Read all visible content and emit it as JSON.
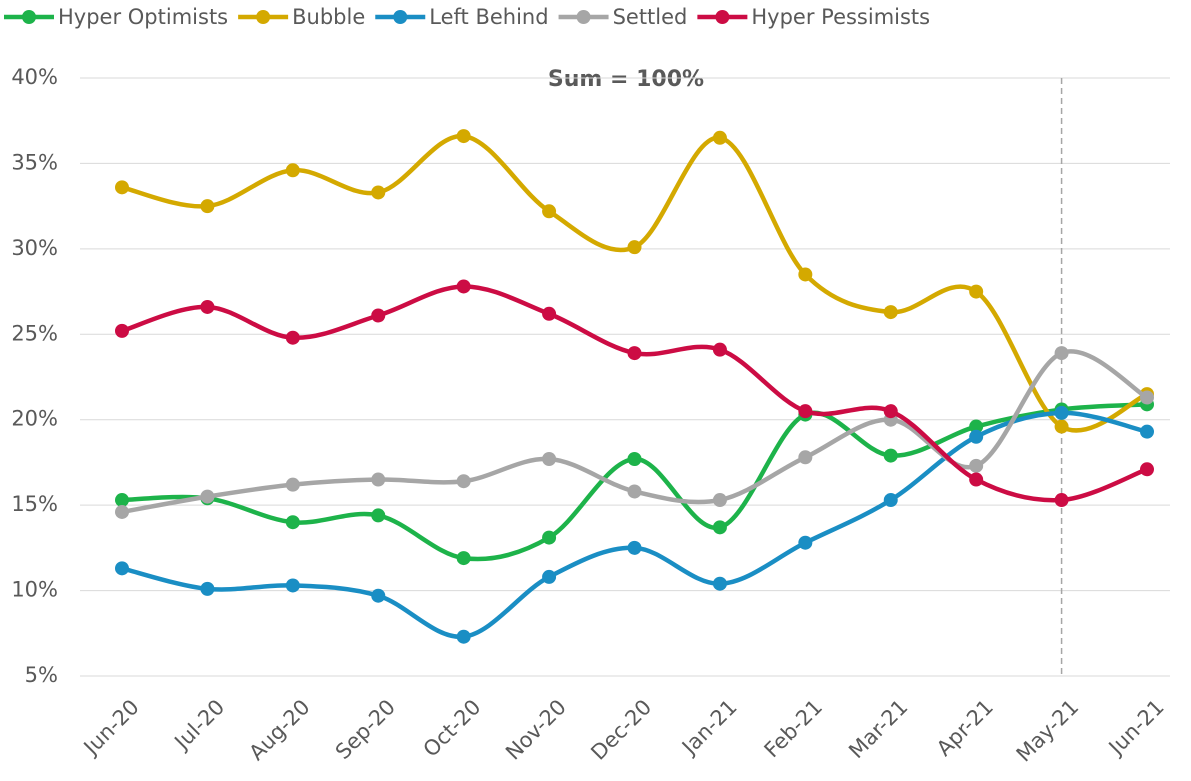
{
  "chart_data": {
    "type": "line",
    "annotation": "Sum = 100%",
    "reference_line": "May-21",
    "categories": [
      "Jun-20",
      "Jul-20",
      "Aug-20",
      "Sep-20",
      "Oct-20",
      "Nov-20",
      "Dec-20",
      "Jan-21",
      "Feb-21",
      "Mar-21",
      "Apr-21",
      "May-21",
      "Jun-21"
    ],
    "series": [
      {
        "name": "Hyper Optimists",
        "color": "#1db34a",
        "values": [
          15.3,
          15.4,
          14.0,
          14.4,
          11.9,
          13.1,
          17.7,
          13.7,
          20.3,
          17.9,
          19.6,
          20.6,
          20.9
        ]
      },
      {
        "name": "Bubble",
        "color": "#d4a900",
        "values": [
          33.6,
          32.5,
          34.6,
          33.3,
          36.6,
          32.2,
          30.1,
          36.5,
          28.5,
          26.3,
          27.5,
          19.6,
          21.5
        ]
      },
      {
        "name": "Left Behind",
        "color": "#1a8ec4",
        "values": [
          11.3,
          10.1,
          10.3,
          9.7,
          7.3,
          10.8,
          12.5,
          10.4,
          12.8,
          15.3,
          19.0,
          20.4,
          19.3
        ]
      },
      {
        "name": "Settled",
        "color": "#a6a6a6",
        "values": [
          14.6,
          15.5,
          16.2,
          16.5,
          16.4,
          17.7,
          15.8,
          15.3,
          17.8,
          20.0,
          17.3,
          23.9,
          21.3
        ]
      },
      {
        "name": "Hyper Pessimists",
        "color": "#cc0c44",
        "values": [
          25.2,
          26.6,
          24.8,
          26.1,
          27.8,
          26.2,
          23.9,
          24.1,
          20.5,
          20.5,
          16.5,
          15.3,
          17.1
        ]
      }
    ],
    "ylim": [
      5,
      40
    ],
    "yticks": [
      {
        "value": 5,
        "label": "5%"
      },
      {
        "value": 10,
        "label": "10%"
      },
      {
        "value": 15,
        "label": "15%"
      },
      {
        "value": 20,
        "label": "20%"
      },
      {
        "value": 25,
        "label": "25%"
      },
      {
        "value": 30,
        "label": "30%"
      },
      {
        "value": 35,
        "label": "35%"
      },
      {
        "value": 40,
        "label": "40%"
      }
    ],
    "grid": true
  }
}
